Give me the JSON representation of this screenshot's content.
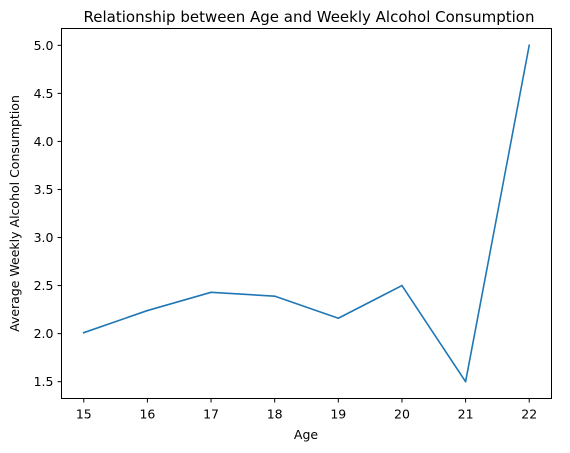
{
  "chart_data": {
    "type": "line",
    "title": "Relationship between Age and Weekly Alcohol Consumption",
    "xlabel": "Age",
    "ylabel": "Average Weekly Alcohol Consumption",
    "x": [
      15,
      16,
      17,
      18,
      19,
      20,
      21,
      22
    ],
    "y": [
      2.01,
      2.24,
      2.43,
      2.39,
      2.16,
      2.5,
      1.5,
      5.0
    ],
    "xticks": [
      "15",
      "16",
      "17",
      "18",
      "19",
      "20",
      "21",
      "22"
    ],
    "yticks": [
      "1.5",
      "2.0",
      "2.5",
      "3.0",
      "3.5",
      "4.0",
      "4.5",
      "5.0"
    ],
    "xlim": [
      14.65,
      22.35
    ],
    "ylim": [
      1.325,
      5.175
    ],
    "grid": false,
    "line_color": "#1f77b4"
  }
}
